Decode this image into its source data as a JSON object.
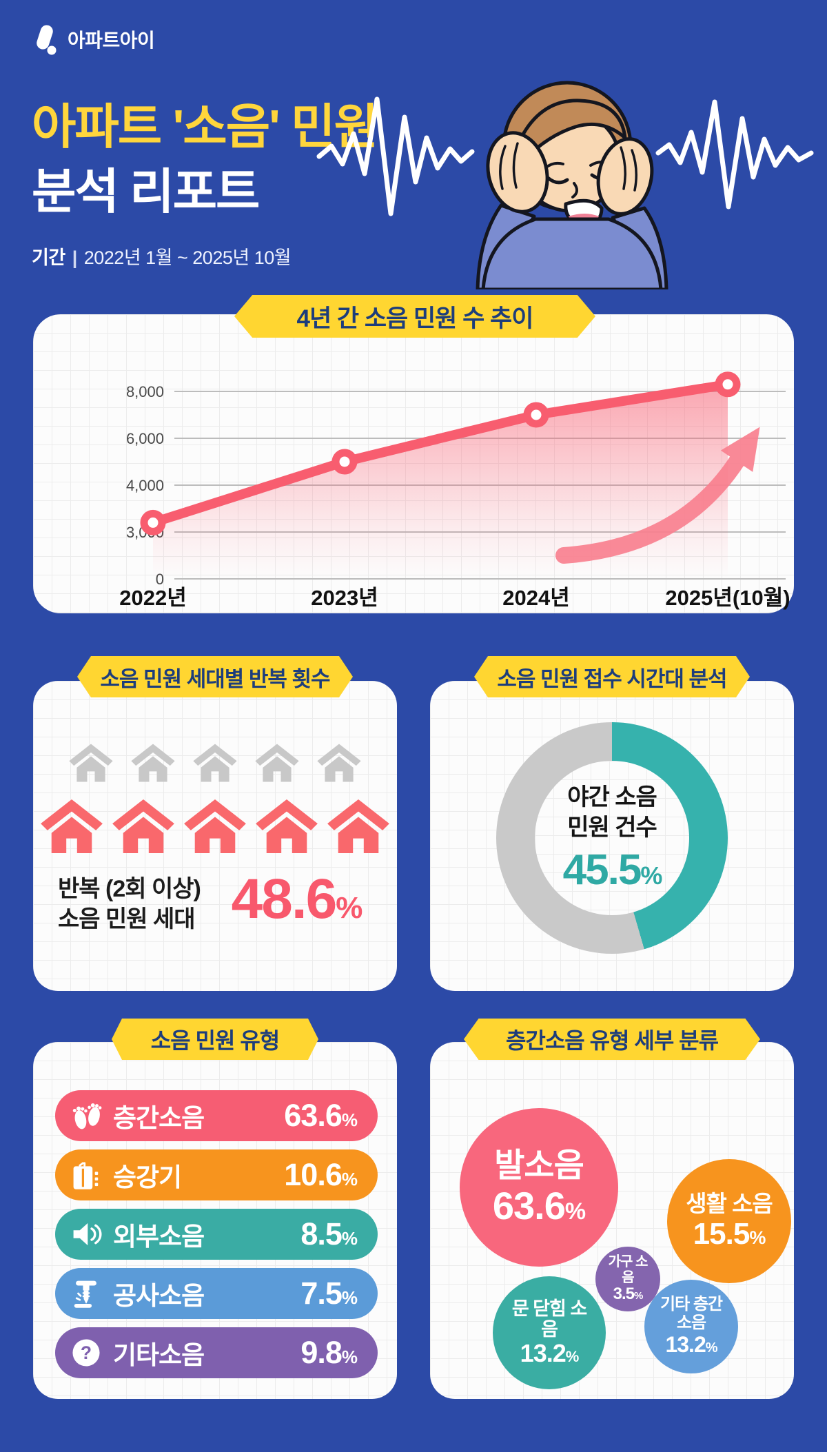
{
  "ui": {
    "percent": "%"
  },
  "brand": {
    "logo_text": "아파트아이"
  },
  "header": {
    "title_line1": "아파트 '소음' 민원",
    "title_line2": "분석 리포트",
    "period_label": "기간",
    "period_sep": "|",
    "period_value": "2022년 1월 ~ 2025년 10월"
  },
  "sections": {
    "trend_banner": "4년 간 소음 민원 수 추이",
    "repeat_banner": "소음 민원 세대별 반복 횟수",
    "time_banner": "소음 민원 접수 시간대 분석",
    "types_banner": "소음 민원 유형",
    "floor_banner": "층간소음 유형 세부 분류"
  },
  "colors": {
    "background": "#2c4aa7",
    "banner_yellow": "#ffd631",
    "banner_text_navy": "#1d3d7b",
    "accent_pink": "#f8586c",
    "accent_teal": "#36b2ad",
    "muted_gray": "#c8c8c8"
  },
  "chart_data": [
    {
      "type": "line",
      "title": "4년 간 소음 민원 수 추이",
      "x": [
        "2022년",
        "2023년",
        "2024년",
        "2025년(10월)"
      ],
      "values": [
        3200,
        5000,
        7000,
        8300
      ],
      "yticks": [
        0,
        3000,
        4000,
        6000,
        8000
      ],
      "ylabels": [
        "0",
        "3,000",
        "4,000",
        "6,000",
        "8,000"
      ],
      "ytick_spacing": "equal",
      "line_color": "#f85d6f",
      "marker": "circle-open",
      "area_fill": "pink-gradient",
      "grid": true,
      "annotation": "upward-arrow"
    },
    {
      "type": "donut",
      "title": "소음 민원 접수 시간대 분석",
      "segments": [
        {
          "label": "야간 소음 민원 건수",
          "value": 45.5,
          "color": "#36b2ad"
        },
        {
          "label": "",
          "value": 54.5,
          "color": "#c9c9c9"
        }
      ],
      "center_text": [
        "야간 소음",
        "민원 건수"
      ],
      "center_value": 45.5
    },
    {
      "type": "pictogram",
      "title": "소음 민원 세대별 반복 횟수",
      "icon": "house-icon",
      "muted_icons": 5,
      "highlighted_icons": 5,
      "muted_color": "#c8c8c8",
      "highlight_color": "#f9686c",
      "caption_line1": "반복 (2회 이상)",
      "caption_line2": "소음 민원 세대",
      "value": 48.6
    },
    {
      "type": "bar",
      "title": "소음 민원 유형",
      "categories": [
        "층간소음",
        "승강기",
        "외부소음",
        "공사소음",
        "기타소음"
      ],
      "values": [
        63.6,
        10.6,
        8.5,
        7.5,
        9.8
      ],
      "colors": [
        "#f65d73",
        "#f7941e",
        "#3aaca4",
        "#5b9bd8",
        "#7f60ae"
      ],
      "icons": [
        "footprints-icon",
        "elevator-icon",
        "speaker-icon",
        "drill-icon",
        "question-icon"
      ]
    },
    {
      "type": "bubble",
      "title": "층간소음 유형 세부 분류",
      "items": [
        {
          "label": "발소음",
          "value": 63.6,
          "color": "#f8677d"
        },
        {
          "label": "생활 소음",
          "value": 15.5,
          "color": "#f7941e"
        },
        {
          "label": "가구 소음",
          "value": 3.5,
          "color": "#8465ae"
        },
        {
          "label": "문 닫힘 소음",
          "value": 13.2,
          "color": "#3aada3"
        },
        {
          "label": "기타 층간소음",
          "value": 13.2,
          "color": "#649fdb"
        }
      ]
    }
  ]
}
